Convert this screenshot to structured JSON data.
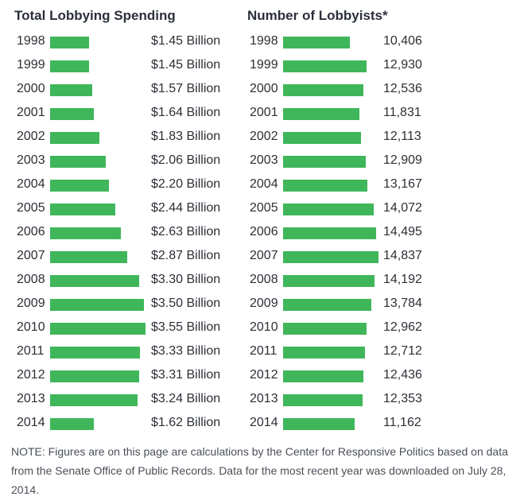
{
  "note": "NOTE: Figures are on this page are calculations by the Center for Responsive Politics based on data from the Senate Office of Public Records. Data for the most recent year was downloaded on July 28, 2014.",
  "colors": {
    "bar": "#3fb65a",
    "text": "#2b2f36"
  },
  "chart_data": [
    {
      "type": "bar",
      "orientation": "horizontal",
      "title": "Total Lobbying Spending",
      "categories": [
        "1998",
        "1999",
        "2000",
        "2001",
        "2002",
        "2003",
        "2004",
        "2005",
        "2006",
        "2007",
        "2008",
        "2009",
        "2010",
        "2011",
        "2012",
        "2013",
        "2014"
      ],
      "values": [
        1.45,
        1.45,
        1.57,
        1.64,
        1.83,
        2.06,
        2.2,
        2.44,
        2.63,
        2.87,
        3.3,
        3.5,
        3.55,
        3.33,
        3.31,
        3.24,
        1.62
      ],
      "labels": [
        "$1.45 Billion",
        "$1.45 Billion",
        "$1.57 Billion",
        "$1.64 Billion",
        "$1.83 Billion",
        "$2.06 Billion",
        "$2.20 Billion",
        "$2.44 Billion",
        "$2.63 Billion",
        "$2.87 Billion",
        "$3.30 Billion",
        "$3.50 Billion",
        "$3.55 Billion",
        "$3.33 Billion",
        "$3.31 Billion",
        "$3.24 Billion",
        "$1.62 Billion"
      ],
      "unit": "Billion USD",
      "xlim": [
        0,
        3.55
      ]
    },
    {
      "type": "bar",
      "orientation": "horizontal",
      "title": "Number of Lobbyists*",
      "categories": [
        "1998",
        "1999",
        "2000",
        "2001",
        "2002",
        "2003",
        "2004",
        "2005",
        "2006",
        "2007",
        "2008",
        "2009",
        "2010",
        "2011",
        "2012",
        "2013",
        "2014"
      ],
      "values": [
        10406,
        12930,
        12536,
        11831,
        12113,
        12909,
        13167,
        14072,
        14495,
        14837,
        14192,
        13784,
        12962,
        12712,
        12436,
        12353,
        11162
      ],
      "labels": [
        "10,406",
        "12,930",
        "12,536",
        "11,831",
        "12,113",
        "12,909",
        "13,167",
        "14,072",
        "14,495",
        "14,837",
        "14,192",
        "13,784",
        "12,962",
        "12,712",
        "12,436",
        "12,353",
        "11,162"
      ],
      "unit": "lobbyists",
      "xlim": [
        0,
        14837
      ]
    }
  ]
}
